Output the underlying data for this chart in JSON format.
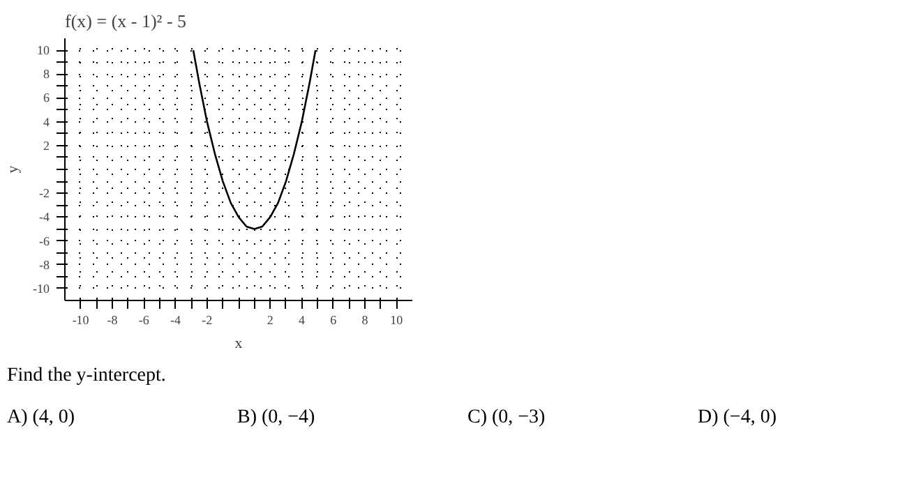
{
  "chart_data": {
    "type": "line",
    "title": "f(x) = (x - 1)² - 5",
    "xlabel": "x",
    "ylabel": "y",
    "series": [
      {
        "color": "#000000",
        "x": [
          -2.87,
          -2.5,
          -2,
          -1.5,
          -1,
          -0.5,
          0,
          0.5,
          1,
          1.5,
          2,
          2.5,
          3,
          3.5,
          4,
          4.5,
          4.87
        ],
        "values": [
          10,
          7.3,
          4,
          1.3,
          -1,
          -2.8,
          -4,
          -4.8,
          -5,
          -4.8,
          -4,
          -2.8,
          -1,
          1.3,
          4,
          7.3,
          10
        ]
      }
    ],
    "xlim": [
      -11,
      11
    ],
    "ylim": [
      -11,
      11
    ],
    "xticks": [
      -10,
      {
        "value": -9,
        "label": null
      },
      -8,
      {
        "value": -7,
        "label": null
      },
      -6,
      {
        "value": -5,
        "label": null
      },
      -4,
      {
        "value": -3,
        "label": null
      },
      -2,
      {
        "value": -1,
        "label": null
      },
      {
        "value": 0,
        "label": null
      },
      {
        "value": 1,
        "label": null
      },
      2,
      {
        "value": 3,
        "label": null
      },
      4,
      {
        "value": 5,
        "label": null
      },
      6,
      {
        "value": 7,
        "label": null
      },
      8,
      {
        "value": 9,
        "label": null
      },
      10
    ],
    "yticks": [
      -10,
      {
        "value": -9,
        "label": null
      },
      -8,
      {
        "value": -7,
        "label": null
      },
      -6,
      {
        "value": -5,
        "label": null
      },
      -4,
      {
        "value": -3,
        "label": null
      },
      -2,
      {
        "value": -1,
        "label": null
      },
      {
        "value": 0,
        "label": null
      },
      {
        "value": 1,
        "label": null
      },
      2,
      {
        "value": 3,
        "label": null
      },
      4,
      {
        "value": 5,
        "label": null
      },
      6,
      {
        "value": 7,
        "label": null
      },
      8,
      {
        "value": 9,
        "label": null
      },
      10
    ],
    "grid": true,
    "line_style": "solid",
    "marker": "none",
    "annotations": [
      "Find the y-intercept.",
      "A) (4, 0)",
      "B) (0, −4)",
      "C) (0, −3)",
      "D) (−4, 0)"
    ]
  }
}
